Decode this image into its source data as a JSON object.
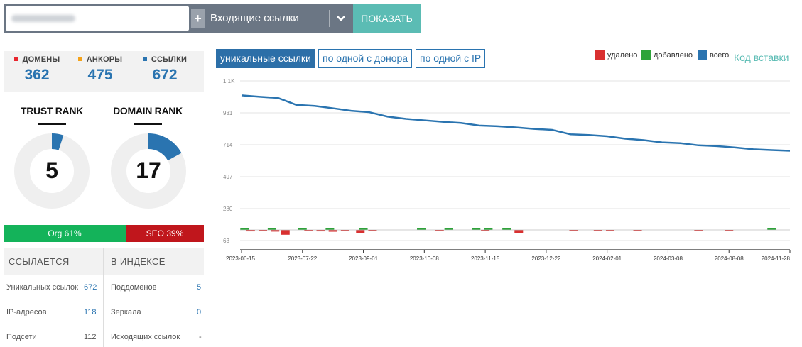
{
  "topbar": {
    "plus_label": "+",
    "select_value": "Входящие ссылки",
    "show_label": "ПОКАЗАТЬ"
  },
  "stats": {
    "domains": {
      "label": "ДОМЕНЫ",
      "value": "362",
      "color": "#e8262e"
    },
    "anchors": {
      "label": "АНКОРЫ",
      "value": "475",
      "color": "#f4a21a"
    },
    "links": {
      "label": "ССЫЛКИ",
      "value": "672",
      "color": "#2a74b0"
    }
  },
  "ranks": {
    "trust": {
      "title": "TRUST RANK",
      "value": "5",
      "fraction": 0.05
    },
    "domain": {
      "title": "DOMAIN RANK",
      "value": "17",
      "fraction": 0.17
    }
  },
  "split": {
    "org": "Org 61%",
    "seo": "SEO 39%",
    "org_fraction": 0.61
  },
  "table": {
    "left_header": "ССЫЛАЕТСЯ",
    "right_header": "В ИНДЕКСЕ",
    "rows": [
      {
        "l_label": "Уникальных ссылок",
        "l_value": "672",
        "r_label": "Поддоменов",
        "r_value": "5"
      },
      {
        "l_label": "IP-адресов",
        "l_value": "118",
        "r_label": "Зеркала",
        "r_value": "0"
      },
      {
        "l_label": "Подсети",
        "l_value": "112",
        "r_label": "Исходящих ссылок",
        "r_value": "-"
      }
    ]
  },
  "chart_tabs": [
    "уникальные ссылки",
    "по одной с донора",
    "по одной с IP"
  ],
  "legend": [
    {
      "label": "удалено",
      "color": "#d93030"
    },
    {
      "label": "добавлено",
      "color": "#2ea33a"
    },
    {
      "label": "всего",
      "color": "#2a74b0"
    }
  ],
  "embed_link": "Код вставки",
  "chart_data": {
    "type": "line",
    "y_ticks": [
      "63",
      "280",
      "497",
      "714",
      "931",
      "1.1K"
    ],
    "ylim": [
      0,
      1148
    ],
    "x_ticks": [
      "2023-06-15",
      "2023-07-22",
      "2023-09-01",
      "2023-10-08",
      "2023-11-15",
      "2023-12-22",
      "2024-02-01",
      "2024-03-08",
      "2024-08-08",
      "2024-11-28"
    ],
    "grid": true,
    "series": [
      {
        "name": "всего",
        "color": "#2a74b0",
        "x": [
          0,
          0.3,
          0.6,
          0.9,
          1.2,
          1.5,
          1.8,
          2.1,
          2.4,
          2.7,
          3.0,
          3.3,
          3.6,
          3.9,
          4.2,
          4.5,
          4.8,
          5.1,
          5.4,
          5.7,
          6.0,
          6.3,
          6.6,
          6.9,
          7.2,
          7.5,
          7.8,
          8.1,
          8.4,
          8.7,
          9.0
        ],
        "y": [
          1050,
          1040,
          1032,
          985,
          978,
          962,
          945,
          935,
          905,
          890,
          880,
          870,
          862,
          845,
          840,
          832,
          822,
          815,
          785,
          780,
          772,
          755,
          745,
          730,
          725,
          710,
          705,
          695,
          683,
          678,
          673
        ]
      },
      {
        "name": "удалено",
        "color": "#d93030",
        "type": "bar",
        "x": [
          0.15,
          0.35,
          0.55,
          0.72,
          1.1,
          1.3,
          1.5,
          1.7,
          1.95,
          2.15,
          3.25,
          4.0,
          4.55,
          5.45,
          5.85,
          6.05,
          6.5,
          7.5,
          8.0
        ],
        "values": [
          -12,
          -10,
          -14,
          -40,
          -10,
          -12,
          -15,
          -8,
          -28,
          -10,
          -10,
          -8,
          -25,
          -10,
          -8,
          -10,
          -8,
          -6,
          -8
        ]
      },
      {
        "name": "добавлено",
        "color": "#2ea33a",
        "type": "bar",
        "x": [
          0.05,
          0.5,
          1.0,
          1.45,
          2.0,
          2.95,
          3.4,
          3.85,
          4.05,
          4.35,
          8.7
        ],
        "values": [
          8,
          10,
          6,
          6,
          12,
          6,
          6,
          6,
          8,
          6,
          8
        ]
      }
    ]
  }
}
